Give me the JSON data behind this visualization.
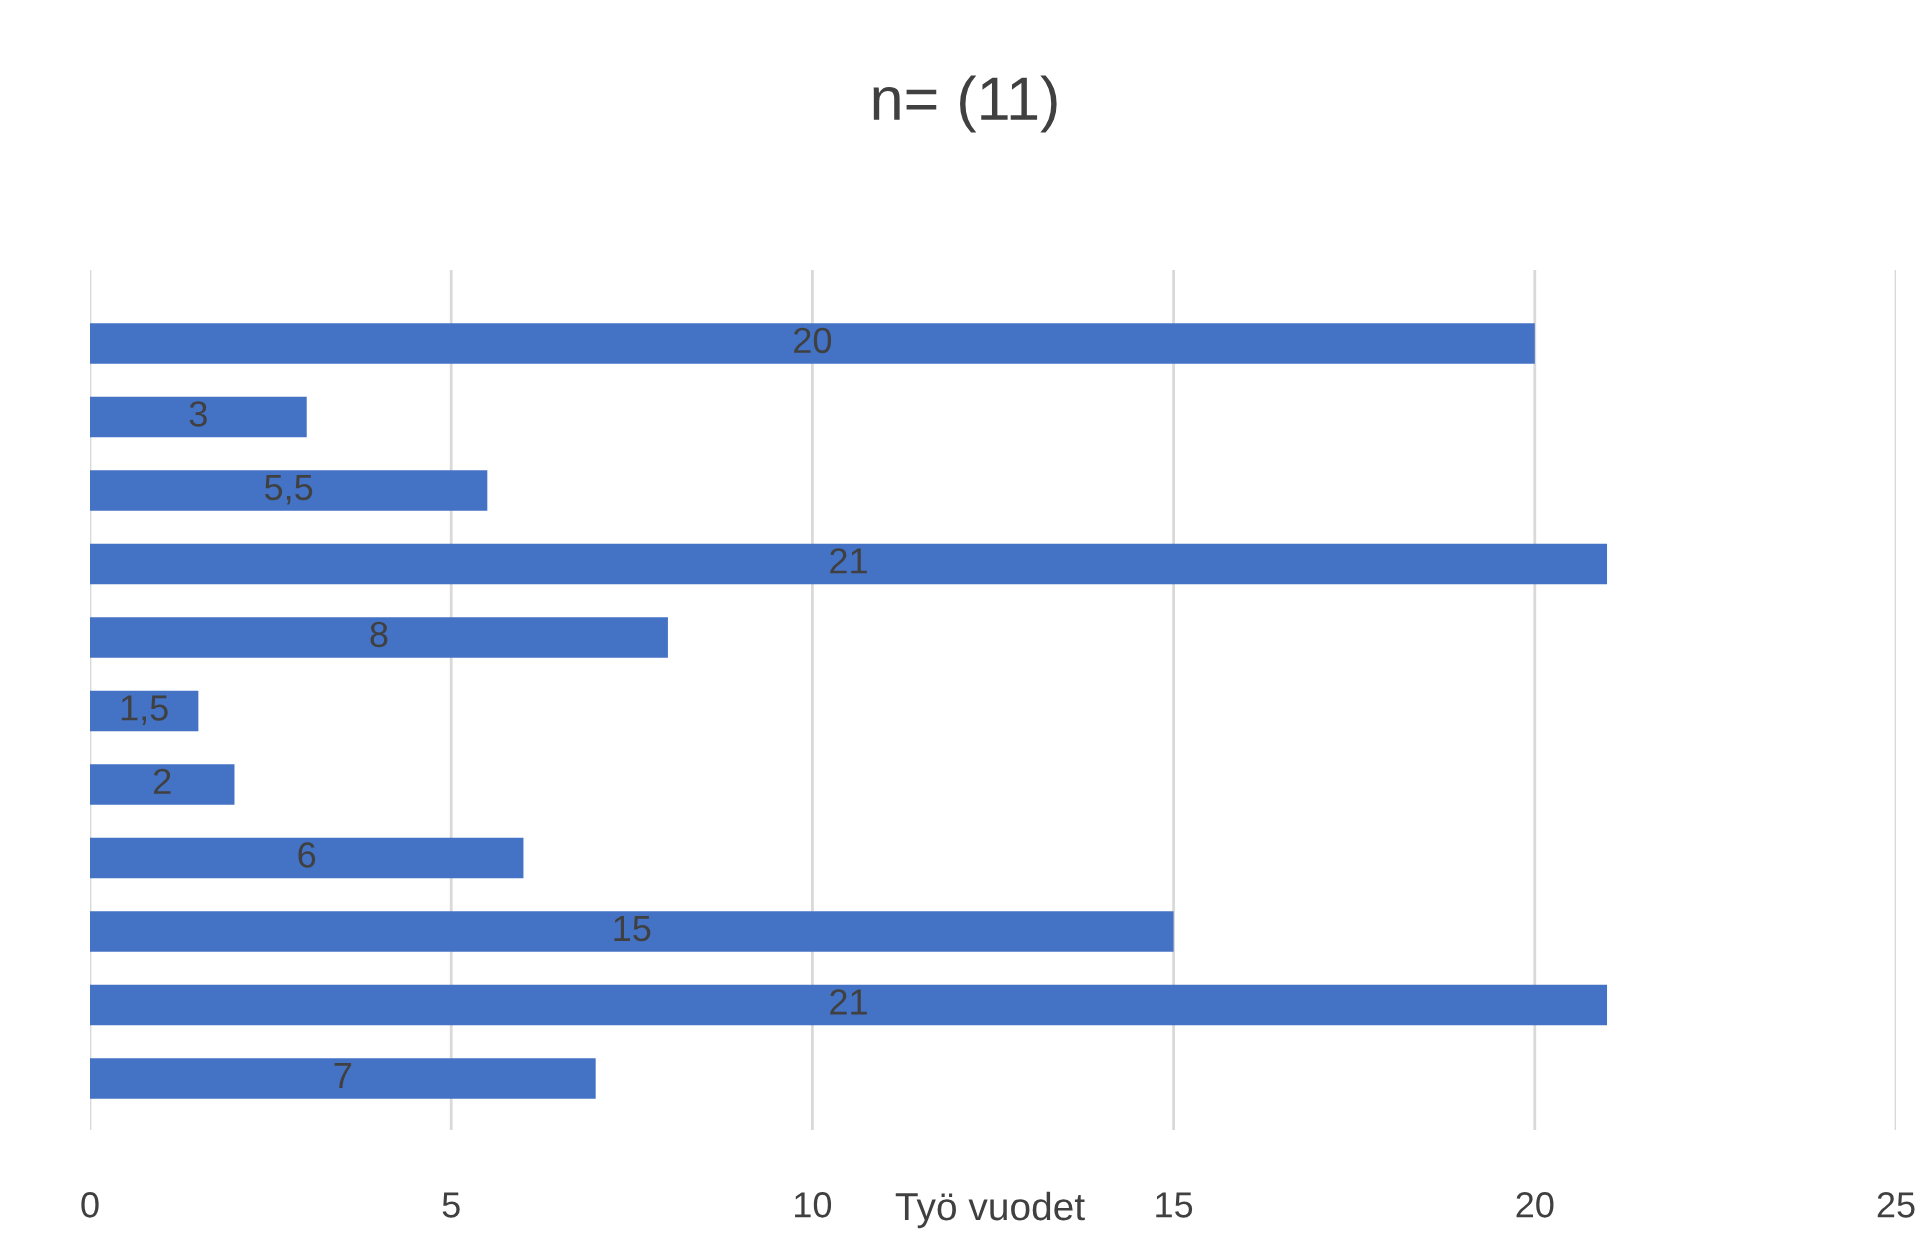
{
  "chart_data": {
    "type": "bar",
    "orientation": "horizontal",
    "title": "n= (11)",
    "xlabel": "Työ vuodet",
    "categories": [
      null,
      null,
      null,
      null,
      null,
      null,
      null,
      null,
      null,
      null,
      null
    ],
    "values": [
      20,
      3,
      5.5,
      21,
      8,
      1.5,
      2,
      6,
      15,
      21,
      7
    ],
    "value_labels": [
      "20",
      "3",
      "5,5",
      "21",
      "8",
      "1,5",
      "2",
      "6",
      "15",
      "21",
      "7"
    ],
    "color": "#4472c4",
    "xlim": [
      0,
      25
    ],
    "xticks": [
      0,
      5,
      10,
      15,
      20,
      25
    ],
    "grid": "x"
  }
}
